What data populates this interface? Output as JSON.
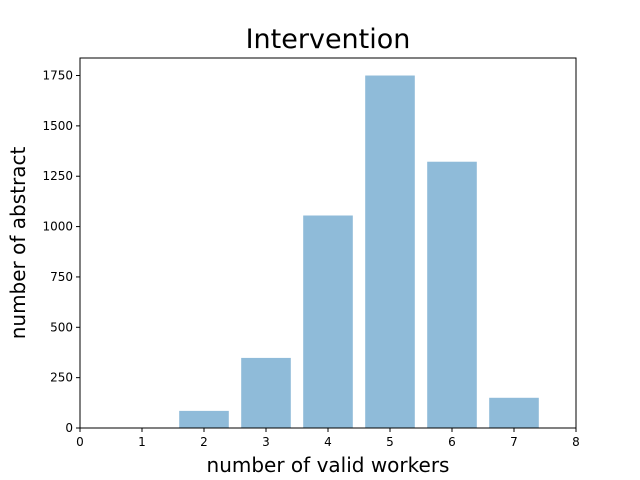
{
  "chart_data": {
    "type": "bar",
    "title": "Intervention",
    "xlabel": "number of valid workers",
    "ylabel": "number of abstract",
    "categories": [
      2,
      3,
      4,
      5,
      6,
      7
    ],
    "values": [
      85,
      348,
      1055,
      1750,
      1322,
      150
    ],
    "xlim": [
      0,
      8
    ],
    "ylim": [
      0,
      1837
    ],
    "xticks": [
      "0",
      "1",
      "2",
      "3",
      "4",
      "5",
      "6",
      "7",
      "8"
    ],
    "yticks": [
      "0",
      "250",
      "500",
      "750",
      "1000",
      "1250",
      "1500",
      "1750"
    ],
    "bar_color": "#8fbbd9",
    "grid": false
  }
}
